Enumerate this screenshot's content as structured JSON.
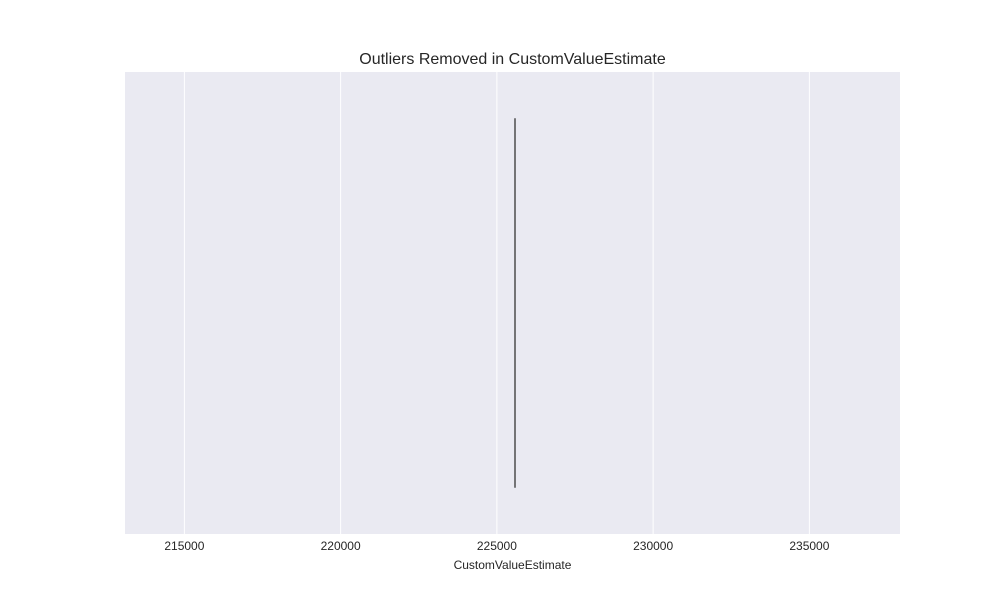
{
  "chart_data": {
    "type": "box",
    "orientation": "horizontal",
    "title": "Outliers Removed in CustomValueEstimate",
    "xlabel": "CustomValueEstimate",
    "ylabel": "",
    "xlim": [
      213100,
      237900
    ],
    "xticks": [
      215000,
      220000,
      225000,
      230000,
      235000
    ],
    "xtick_labels": [
      "215000",
      "220000",
      "225000",
      "230000",
      "235000"
    ],
    "grid": true,
    "colors": {
      "plot_background": "#eaeaf2",
      "grid": "#ffffff",
      "box_line": "#4d4d4d",
      "text": "#262626"
    },
    "boxes": [
      {
        "min": 225580,
        "q1": 225580,
        "median": 225580,
        "q3": 225580,
        "max": 225580
      }
    ]
  }
}
